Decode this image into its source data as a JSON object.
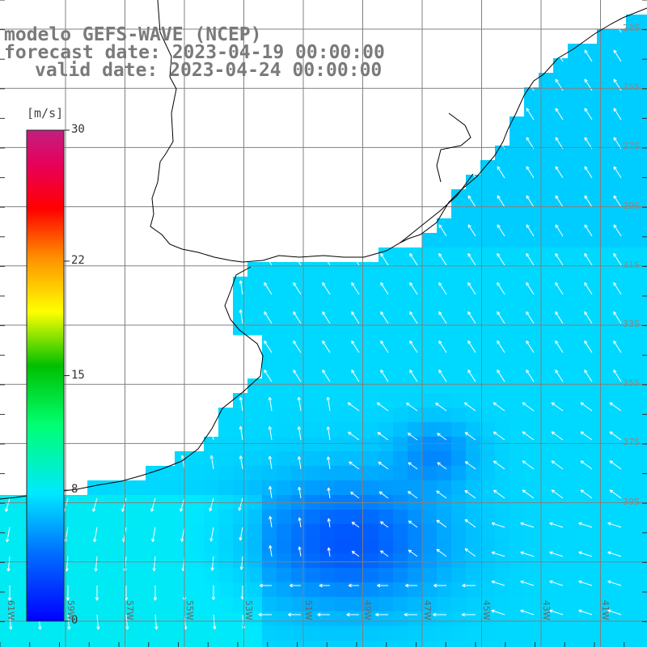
{
  "title": {
    "line1": "modelo GEFS-WAVE (NCEP)",
    "line2": "forecast date: 2023-04-19 00:00:00",
    "line3": "valid date: 2023-04-24 00:00:00"
  },
  "colorbar": {
    "unit": "[m/s]",
    "ticks": [
      "30",
      "22",
      "15",
      "8",
      "0"
    ],
    "tick_values": [
      30,
      22,
      15,
      8,
      0
    ],
    "range": [
      0,
      30
    ],
    "colors": [
      "#0000ff",
      "#0080ff",
      "#00e0ff",
      "#00ff80",
      "#00c000",
      "#ffff00",
      "#ff9000",
      "#ff0000",
      "#e00060",
      "#c0207a"
    ]
  },
  "axes": {
    "lon_labels": [
      "61W",
      "59W",
      "57W",
      "55W",
      "53W",
      "51W",
      "49W",
      "47W",
      "45W",
      "43W",
      "41W"
    ],
    "lat_labels": [
      "23S",
      "25S",
      "27S",
      "29S",
      "31S",
      "33S",
      "35S",
      "37S",
      "39S"
    ]
  },
  "colors": {
    "land": "#ffffff",
    "coast": "#000000",
    "grid": "#808080",
    "title": "#7a7a7a",
    "vector": "#ffffff"
  }
}
